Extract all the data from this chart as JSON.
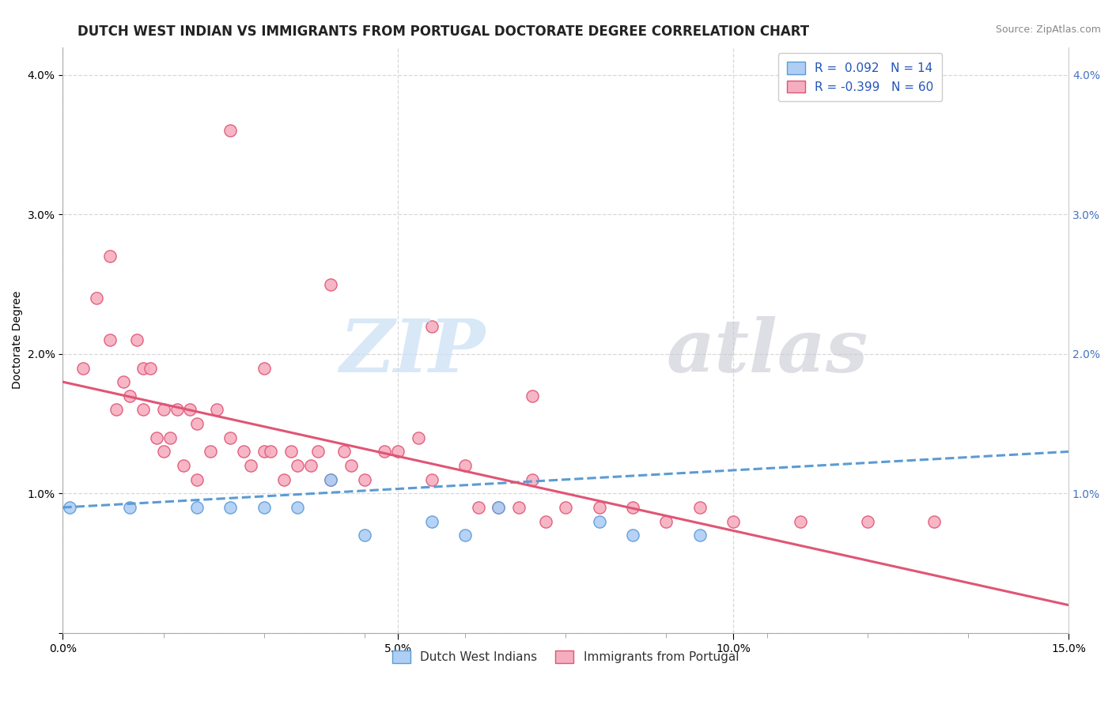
{
  "title": "DUTCH WEST INDIAN VS IMMIGRANTS FROM PORTUGAL DOCTORATE DEGREE CORRELATION CHART",
  "source": "Source: ZipAtlas.com",
  "ylabel": "Doctorate Degree",
  "xlim": [
    0.0,
    0.15
  ],
  "ylim": [
    0.0,
    0.042
  ],
  "x_ticks": [
    0.0,
    0.05,
    0.1,
    0.15
  ],
  "x_tick_labels": [
    "0.0%",
    "5.0%",
    "10.0%",
    "15.0%"
  ],
  "y_ticks": [
    0.0,
    0.01,
    0.02,
    0.03,
    0.04
  ],
  "y_tick_labels": [
    "",
    "1.0%",
    "2.0%",
    "3.0%",
    "4.0%"
  ],
  "blue_R": "0.092",
  "blue_N": "14",
  "pink_R": "-0.399",
  "pink_N": "60",
  "blue_color": "#aecef5",
  "pink_color": "#f5aec0",
  "blue_edge_color": "#5b9bd5",
  "pink_edge_color": "#e05575",
  "blue_line_color": "#5b9bd5",
  "pink_line_color": "#e05575",
  "background_color": "#ffffff",
  "grid_color": "#d8d8d8",
  "blue_line_start_y": 0.009,
  "blue_line_end_y": 0.013,
  "pink_line_start_y": 0.018,
  "pink_line_end_y": 0.002,
  "blue_scatter_x": [
    0.001,
    0.01,
    0.02,
    0.025,
    0.03,
    0.035,
    0.04,
    0.045,
    0.055,
    0.06,
    0.065,
    0.08,
    0.085,
    0.095
  ],
  "blue_scatter_y": [
    0.009,
    0.009,
    0.009,
    0.009,
    0.009,
    0.009,
    0.011,
    0.007,
    0.008,
    0.007,
    0.009,
    0.008,
    0.007,
    0.007
  ],
  "pink_scatter_x": [
    0.003,
    0.005,
    0.007,
    0.007,
    0.008,
    0.009,
    0.01,
    0.011,
    0.012,
    0.012,
    0.013,
    0.014,
    0.015,
    0.015,
    0.016,
    0.017,
    0.018,
    0.019,
    0.02,
    0.02,
    0.022,
    0.023,
    0.025,
    0.027,
    0.028,
    0.03,
    0.031,
    0.033,
    0.034,
    0.035,
    0.037,
    0.038,
    0.04,
    0.042,
    0.043,
    0.045,
    0.048,
    0.05,
    0.053,
    0.055,
    0.06,
    0.062,
    0.065,
    0.068,
    0.07,
    0.072,
    0.075,
    0.08,
    0.085,
    0.09,
    0.095,
    0.1,
    0.11,
    0.12,
    0.13,
    0.04,
    0.055,
    0.025,
    0.03,
    0.07
  ],
  "pink_scatter_y": [
    0.019,
    0.024,
    0.027,
    0.021,
    0.016,
    0.018,
    0.017,
    0.021,
    0.019,
    0.016,
    0.019,
    0.014,
    0.013,
    0.016,
    0.014,
    0.016,
    0.012,
    0.016,
    0.015,
    0.011,
    0.013,
    0.016,
    0.014,
    0.013,
    0.012,
    0.013,
    0.013,
    0.011,
    0.013,
    0.012,
    0.012,
    0.013,
    0.011,
    0.013,
    0.012,
    0.011,
    0.013,
    0.013,
    0.014,
    0.011,
    0.012,
    0.009,
    0.009,
    0.009,
    0.011,
    0.008,
    0.009,
    0.009,
    0.009,
    0.008,
    0.009,
    0.008,
    0.008,
    0.008,
    0.008,
    0.025,
    0.022,
    0.036,
    0.019,
    0.017
  ],
  "title_fontsize": 12,
  "axis_label_fontsize": 10,
  "tick_fontsize": 10,
  "legend_fontsize": 11,
  "source_fontsize": 9,
  "marker_size": 120
}
